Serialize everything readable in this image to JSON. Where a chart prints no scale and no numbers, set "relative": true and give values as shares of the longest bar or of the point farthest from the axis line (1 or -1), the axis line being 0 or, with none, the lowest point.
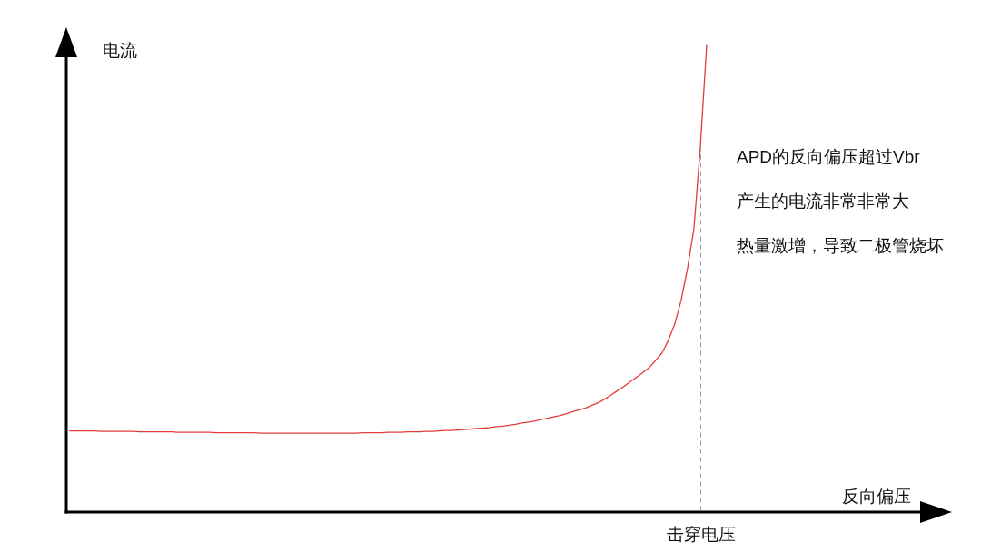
{
  "chart_data": {
    "type": "line",
    "relative": true,
    "xlabel": "反向偏压",
    "ylabel": "电流",
    "categories": [
      null,
      null,
      null,
      null,
      null,
      null,
      null,
      null,
      null,
      null,
      null,
      null,
      null,
      null,
      null,
      null,
      null,
      null,
      null,
      null,
      null,
      null,
      null,
      null,
      null,
      null,
      null,
      null,
      null,
      null,
      null,
      null,
      null,
      null,
      null,
      null,
      null,
      null,
      null,
      null,
      null,
      null,
      null,
      null,
      null,
      null,
      null,
      null,
      null,
      null,
      null,
      null,
      null,
      null,
      null,
      null,
      null,
      null,
      null,
      null,
      null,
      null,
      null,
      null,
      null,
      null,
      null,
      null,
      null,
      null,
      null,
      null,
      null,
      null,
      null,
      null,
      null,
      null,
      null,
      null,
      null,
      null,
      null,
      null,
      null,
      null,
      null,
      null,
      null,
      null,
      null,
      null,
      null,
      null,
      null,
      null,
      null,
      null,
      null,
      null,
      null,
      null,
      null,
      null,
      null,
      null,
      null,
      null,
      null,
      null,
      null,
      null,
      null,
      null,
      null,
      null,
      null,
      null,
      null,
      null,
      null,
      null,
      null,
      null,
      null,
      null,
      null,
      null,
      null,
      null,
      null,
      null,
      null,
      null,
      null,
      null,
      null,
      null,
      null
    ],
    "series": [
      {
        "color": "#e23b3b",
        "values": [
          0.174,
          0.174,
          0.174,
          0.174,
          0.174,
          0.173,
          0.173,
          0.173,
          0.173,
          0.173,
          0.173,
          0.172,
          0.172,
          0.172,
          0.172,
          0.172,
          0.172,
          0.171,
          0.171,
          0.171,
          0.171,
          0.171,
          0.171,
          0.17,
          0.17,
          0.17,
          0.17,
          0.17,
          0.17,
          0.17,
          0.169,
          0.169,
          0.169,
          0.169,
          0.169,
          0.169,
          0.169,
          0.169,
          0.169,
          0.169,
          0.169,
          0.169,
          0.169,
          0.169,
          0.169,
          0.169,
          0.17,
          0.17,
          0.17,
          0.17,
          0.171,
          0.171,
          0.171,
          0.172,
          0.172,
          0.172,
          0.173,
          0.173,
          0.174,
          0.175,
          0.175,
          0.176,
          0.177,
          0.178,
          0.179,
          0.18,
          0.181,
          0.183,
          0.184,
          0.186,
          0.188,
          0.191,
          0.193,
          0.195,
          0.198,
          0.201,
          0.204,
          0.207,
          0.211,
          0.215,
          0.219,
          0.223,
          0.229,
          0.234,
          0.242,
          0.251,
          0.26,
          0.269,
          0.279,
          0.289,
          0.299,
          0.31,
          0.325,
          0.341,
          0.368,
          0.403,
          0.454,
          0.522,
          0.607,
          0.78,
          1,
          null,
          null,
          null,
          null,
          null,
          null,
          null,
          null,
          null,
          null,
          null,
          null,
          null,
          null,
          null,
          null,
          null,
          null,
          null,
          null,
          null,
          null,
          null,
          null,
          null,
          null,
          null,
          null,
          null,
          null,
          null,
          null,
          null,
          null,
          null,
          null,
          null,
          null
        ]
      }
    ],
    "annotations": [
      "APD的反向偏压超过Vbr",
      "产生的电流非常非常大",
      "热量激增，导致二极管烧坏",
      "击穿电压"
    ]
  }
}
